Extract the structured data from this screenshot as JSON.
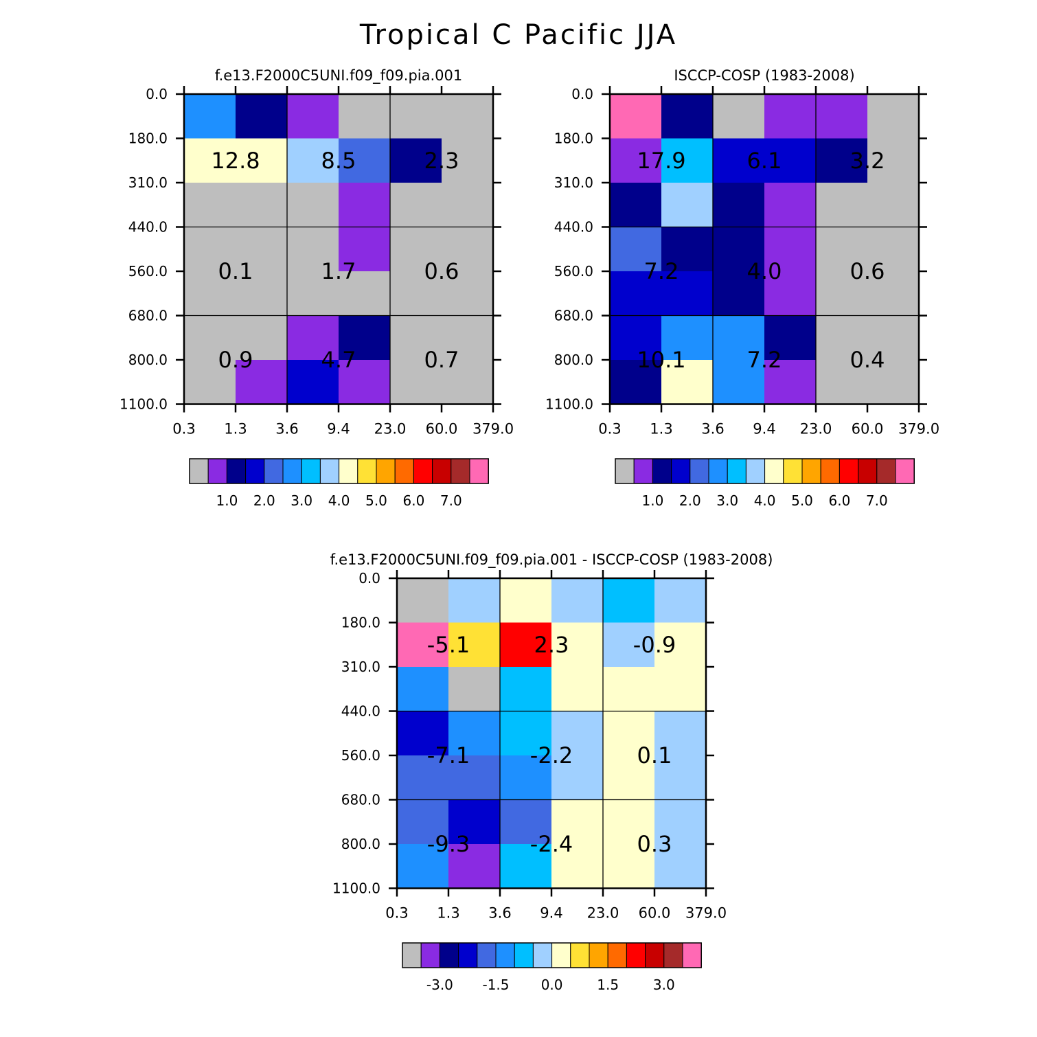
{
  "title": "Tropical C Pacific JJA",
  "colors": {
    "palette": [
      "#bebebe",
      "#8a2be2",
      "#00008b",
      "#0000cd",
      "#4169e1",
      "#1e90ff",
      "#00bfff",
      "#a0d0ff",
      "#ffffcc",
      "#ffe135",
      "#ffa500",
      "#ff6a00",
      "#ff0000",
      "#c80000",
      "#a52a2a",
      "#ff69b4"
    ]
  },
  "chart_data": [
    {
      "type": "heatmap",
      "title": "f.e13.F2000C5UNI.f09_f09.pia.001",
      "x_tick_labels": [
        "0.3",
        "1.3",
        "3.6",
        "9.4",
        "23.0",
        "60.0",
        "379.0"
      ],
      "y_tick_labels": [
        "0.0",
        "180.0",
        "310.0",
        "440.0",
        "560.0",
        "680.0",
        "800.0",
        "1100.0"
      ],
      "cell_color_index": [
        [
          5,
          2,
          1,
          0,
          0,
          0
        ],
        [
          8,
          8,
          7,
          4,
          2,
          0
        ],
        [
          0,
          0,
          0,
          1,
          0,
          0
        ],
        [
          0,
          0,
          0,
          1,
          0,
          0
        ],
        [
          0,
          0,
          0,
          0,
          0,
          0
        ],
        [
          0,
          0,
          1,
          2,
          0,
          0
        ],
        [
          0,
          1,
          3,
          1,
          0,
          0
        ]
      ],
      "annotations": [
        {
          "col": 0,
          "row": 0,
          "text": "12.8"
        },
        {
          "col": 1,
          "row": 0,
          "text": "8.5"
        },
        {
          "col": 2,
          "row": 0,
          "text": "2.3"
        },
        {
          "col": 0,
          "row": 1,
          "text": "0.1"
        },
        {
          "col": 1,
          "row": 1,
          "text": "1.7"
        },
        {
          "col": 2,
          "row": 1,
          "text": "0.6"
        },
        {
          "col": 0,
          "row": 2,
          "text": "0.9"
        },
        {
          "col": 1,
          "row": 2,
          "text": "4.7"
        },
        {
          "col": 2,
          "row": 2,
          "text": "0.7"
        }
      ],
      "colorbar_labels": [
        "1.0",
        "2.0",
        "3.0",
        "4.0",
        "5.0",
        "6.0",
        "7.0"
      ]
    },
    {
      "type": "heatmap",
      "title": "ISCCP-COSP (1983-2008)",
      "x_tick_labels": [
        "0.3",
        "1.3",
        "3.6",
        "9.4",
        "23.0",
        "60.0",
        "379.0"
      ],
      "y_tick_labels": [
        "0.0",
        "180.0",
        "310.0",
        "440.0",
        "560.0",
        "680.0",
        "800.0",
        "1100.0"
      ],
      "cell_color_index": [
        [
          15,
          2,
          0,
          1,
          1,
          0
        ],
        [
          1,
          6,
          3,
          3,
          2,
          0
        ],
        [
          2,
          7,
          2,
          1,
          0,
          0
        ],
        [
          4,
          2,
          2,
          1,
          0,
          0
        ],
        [
          3,
          3,
          2,
          1,
          0,
          0
        ],
        [
          3,
          5,
          5,
          2,
          0,
          0
        ],
        [
          2,
          8,
          5,
          1,
          0,
          0
        ]
      ],
      "annotations": [
        {
          "col": 0,
          "row": 0,
          "text": "17.9"
        },
        {
          "col": 1,
          "row": 0,
          "text": "6.1"
        },
        {
          "col": 2,
          "row": 0,
          "text": "3.2"
        },
        {
          "col": 0,
          "row": 1,
          "text": "7.2"
        },
        {
          "col": 1,
          "row": 1,
          "text": "4.0"
        },
        {
          "col": 2,
          "row": 1,
          "text": "0.6"
        },
        {
          "col": 0,
          "row": 2,
          "text": "10.1"
        },
        {
          "col": 1,
          "row": 2,
          "text": "7.2"
        },
        {
          "col": 2,
          "row": 2,
          "text": "0.4"
        }
      ],
      "colorbar_labels": [
        "1.0",
        "2.0",
        "3.0",
        "4.0",
        "5.0",
        "6.0",
        "7.0"
      ]
    },
    {
      "type": "heatmap",
      "title": "f.e13.F2000C5UNI.f09_f09.pia.001 - ISCCP-COSP (1983-2008)",
      "x_tick_labels": [
        "0.3",
        "1.3",
        "3.6",
        "9.4",
        "23.0",
        "60.0",
        "379.0"
      ],
      "y_tick_labels": [
        "0.0",
        "180.0",
        "310.0",
        "440.0",
        "560.0",
        "680.0",
        "800.0",
        "1100.0"
      ],
      "cell_color_index": [
        [
          0,
          7,
          8,
          7,
          6,
          7
        ],
        [
          15,
          9,
          12,
          8,
          7,
          8
        ],
        [
          5,
          0,
          6,
          8,
          8,
          8
        ],
        [
          3,
          5,
          6,
          7,
          8,
          7
        ],
        [
          4,
          4,
          5,
          7,
          8,
          7
        ],
        [
          4,
          3,
          4,
          8,
          8,
          7
        ],
        [
          5,
          1,
          6,
          8,
          8,
          7
        ]
      ],
      "annotations": [
        {
          "col": 0,
          "row": 0,
          "text": "-5.1"
        },
        {
          "col": 1,
          "row": 0,
          "text": "2.3"
        },
        {
          "col": 2,
          "row": 0,
          "text": "-0.9"
        },
        {
          "col": 0,
          "row": 1,
          "text": "-7.1"
        },
        {
          "col": 1,
          "row": 1,
          "text": "-2.2"
        },
        {
          "col": 2,
          "row": 1,
          "text": "0.1"
        },
        {
          "col": 0,
          "row": 2,
          "text": "-9.3"
        },
        {
          "col": 1,
          "row": 2,
          "text": "-2.4"
        },
        {
          "col": 2,
          "row": 2,
          "text": "0.3"
        }
      ],
      "colorbar_labels": [
        "-3.0",
        "-1.5",
        "0.0",
        "1.5",
        "3.0"
      ]
    }
  ]
}
